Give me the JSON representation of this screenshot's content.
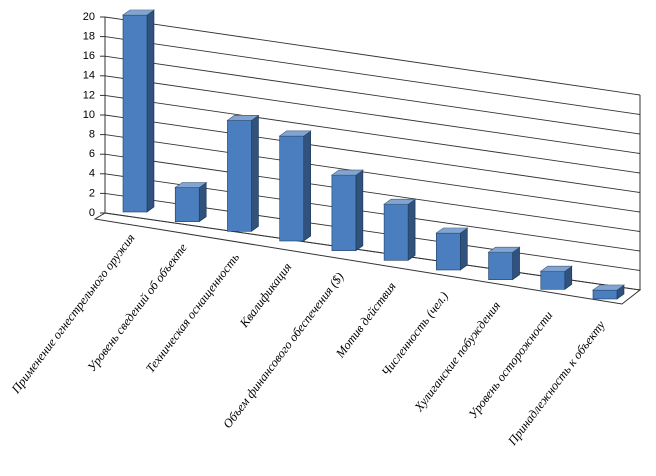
{
  "chart_data": {
    "type": "bar3d",
    "categories": [
      "Применение огнестрельного оружия",
      "Уровень сведений об объекте",
      "Техническая оснащенность",
      "Квалификация",
      "Объем финансового обеспечения ($)",
      "Мотив действия",
      "Численность (чел.)",
      "Хулиганские побуждения",
      "Уровень осторожности",
      "Принадлежность к объекту"
    ],
    "values": [
      20,
      3.5,
      11.5,
      11,
      8,
      6,
      4,
      3,
      2,
      1
    ],
    "color": "#4a7ebf",
    "ylim": [
      0,
      20
    ],
    "yticks": [
      0,
      2,
      4,
      6,
      8,
      10,
      12,
      14,
      16,
      18,
      20
    ],
    "grid": true
  }
}
